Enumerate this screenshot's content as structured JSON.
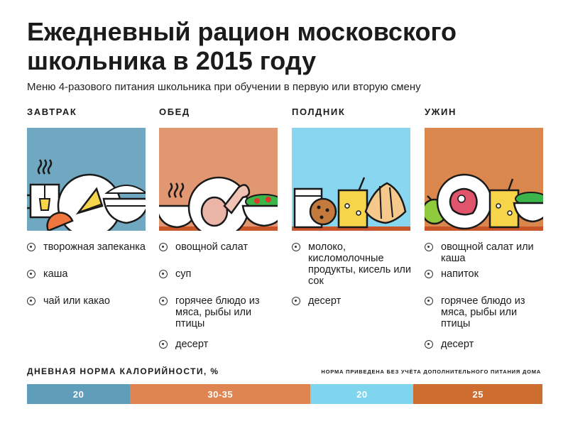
{
  "title": "Ежедневный рацион московского школьника в 2015 году",
  "subtitle": "Меню 4-разового питания школьника при обучении в первую или вторую смену",
  "colors": {
    "breakfast": "#70a7c1",
    "lunch": "#e19772",
    "snack": "#88d6ef",
    "dinner": "#d9874c",
    "bar_breakfast": "#5f9dbb",
    "bar_lunch": "#df8552",
    "bar_snack": "#7fd4ee",
    "bar_dinner": "#cd6d2f"
  },
  "meals": [
    {
      "name": "ЗАВТРАК",
      "icon": "breakfast-illustration",
      "items": [
        "творожная запеканка",
        "каша",
        "чай или какао"
      ]
    },
    {
      "name": "ОБЕД",
      "icon": "lunch-illustration",
      "items": [
        "овощной салат",
        "суп",
        "горячее блюдо из мяса, рыбы или птицы",
        "десерт"
      ]
    },
    {
      "name": "ПОЛДНИК",
      "icon": "snack-illustration",
      "items": [
        "молоко, кисломолочные продукты, кисель или сок",
        "десерт"
      ]
    },
    {
      "name": "УЖИН",
      "icon": "dinner-illustration",
      "items": [
        "овощной салат или каша",
        "напиток",
        "горячее блюдо из мяса, рыбы или птицы",
        "десерт"
      ]
    }
  ],
  "calories": {
    "label": "ДНЕВНАЯ НОРМА КАЛОРИЙНОСТИ, %",
    "note": "НОРМА ПРИВЕДЕНА БЕЗ УЧЁТА ДОПОЛНИТЕЛЬНОГО ПИТАНИЯ ДОМА",
    "segments": [
      {
        "meal": "ЗАВТРАК",
        "label": "20",
        "value": 20
      },
      {
        "meal": "ОБЕД",
        "label": "30-35",
        "value": 35
      },
      {
        "meal": "ПОЛДНИК",
        "label": "20",
        "value": 20
      },
      {
        "meal": "УЖИН",
        "label": "25",
        "value": 25
      }
    ]
  }
}
